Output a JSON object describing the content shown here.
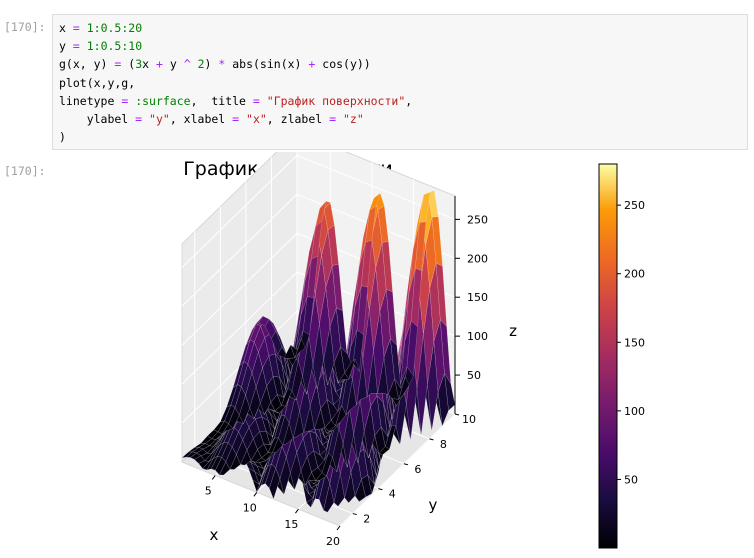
{
  "cell": {
    "input_prompt": "[170]:",
    "output_prompt": "[170]:"
  },
  "code": {
    "line1": {
      "a": "x ",
      "op": "=",
      "b": " ",
      "num": "1:0.5:20"
    },
    "line2": {
      "a": "y ",
      "op": "=",
      "b": " ",
      "num": "1:0.5:10"
    },
    "line3": {
      "a": "g(x, y) ",
      "op1": "=",
      "b": " (",
      "n1": "3",
      "c": "x ",
      "op2": "+",
      "d": " y ",
      "op3": "^",
      "e": " ",
      "n2": "2",
      "f": ") ",
      "op4": "*",
      "g": " abs(sin(x) ",
      "op5": "+",
      "h": " cos(y))"
    },
    "line4": {
      "a": "plot(x,y,g,"
    },
    "line5": {
      "a": "linetype ",
      "op1": "=",
      "b": " ",
      "sym": ":surface",
      "c": ",  title ",
      "op2": "=",
      "d": " ",
      "str": "\"График поверхности\"",
      "e": ","
    },
    "line6": {
      "a": "    ylabel ",
      "op1": "=",
      "b": " ",
      "s1": "\"y\"",
      "c": ", xlabel ",
      "op2": "=",
      "d": " ",
      "s2": "\"x\"",
      "e": ", zlabel ",
      "op3": "=",
      "f": " ",
      "s3": "\"z\""
    },
    "line7": {
      "a": ")"
    }
  },
  "colors": {
    "operator": "#aa22ff",
    "number": "#008000",
    "string": "#ba2121",
    "colormap": "inferno"
  },
  "chart_data": {
    "type": "surface",
    "title": "График поверхности",
    "function": "g(x, y) = (3x + y^2) * abs(sin(x) + cos(y))",
    "x": {
      "start": 1,
      "step": 0.5,
      "stop": 20
    },
    "y": {
      "start": 1,
      "step": 0.5,
      "stop": 10
    },
    "xlabel": "x",
    "ylabel": "y",
    "zlabel": "z",
    "x_ticks": [
      "5",
      "10",
      "15",
      "20"
    ],
    "y_ticks": [
      "2",
      "4",
      "6",
      "8",
      "10"
    ],
    "z_ticks": [
      "50",
      "100",
      "150",
      "200",
      "250"
    ],
    "colorbar_ticks": [
      "50",
      "100",
      "150",
      "200",
      "250"
    ],
    "colorbar_range": [
      0,
      280
    ],
    "zlim": [
      0,
      280
    ]
  }
}
